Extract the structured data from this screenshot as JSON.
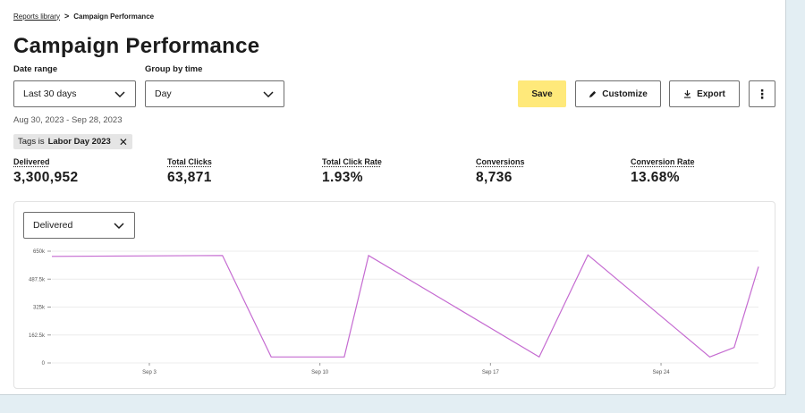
{
  "breadcrumb": {
    "parent": "Reports library",
    "separator": ">",
    "current": "Campaign Performance"
  },
  "page_title": "Campaign Performance",
  "filters": {
    "date_range_label": "Date range",
    "date_range_value": "Last 30 days",
    "group_by_label": "Group by time",
    "group_by_value": "Day"
  },
  "toolbar": {
    "save_label": "Save",
    "customize_label": "Customize",
    "export_label": "Export",
    "more_label": "⋮"
  },
  "date_span": "Aug 30, 2023 - Sep 28, 2023",
  "tag_filter": {
    "prefix": "Tags is",
    "value": "Labor Day 2023",
    "remove": "✕"
  },
  "stats": [
    {
      "label": "Delivered",
      "value": "3,300,952"
    },
    {
      "label": "Total Clicks",
      "value": "63,871"
    },
    {
      "label": "Total Click Rate",
      "value": "1.93%"
    },
    {
      "label": "Conversions",
      "value": "8,736"
    },
    {
      "label": "Conversion Rate",
      "value": "13.68%"
    }
  ],
  "chart_metric_select": "Delivered",
  "colors": {
    "accent_yellow": "#ffe97a",
    "line": "#c56bd1",
    "background": "#e3eef3"
  },
  "chart_data": {
    "type": "line",
    "title": "",
    "xlabel": "",
    "ylabel": "",
    "x_start": "Aug 30",
    "x_end": "Sep 28",
    "x_ticks": [
      {
        "label": "Sep 3",
        "day": 3
      },
      {
        "label": "Sep 10",
        "day": 10
      },
      {
        "label": "Sep 17",
        "day": 17
      },
      {
        "label": "Sep 24",
        "day": 24
      }
    ],
    "y_ticks": [
      {
        "label": "0",
        "value": 0
      },
      {
        "label": "162.5k",
        "value": 162500
      },
      {
        "label": "325k",
        "value": 325000
      },
      {
        "label": "487.5k",
        "value": 487500
      },
      {
        "label": "650k",
        "value": 650000
      }
    ],
    "ylim": [
      0,
      650000
    ],
    "grid": true,
    "series": [
      {
        "points": [
          {
            "date": "Aug 30",
            "value": 620000
          },
          {
            "date": "Sep 6",
            "value": 625000
          },
          {
            "date": "Sep 8",
            "value": 35000
          },
          {
            "date": "Sep 11",
            "value": 35000
          },
          {
            "date": "Sep 12",
            "value": 625000
          },
          {
            "date": "Sep 19",
            "value": 35000
          },
          {
            "date": "Sep 21",
            "value": 628000
          },
          {
            "date": "Sep 26",
            "value": 35000
          },
          {
            "date": "Sep 27",
            "value": 90000
          },
          {
            "date": "Sep 28",
            "value": 560000
          }
        ]
      }
    ]
  }
}
